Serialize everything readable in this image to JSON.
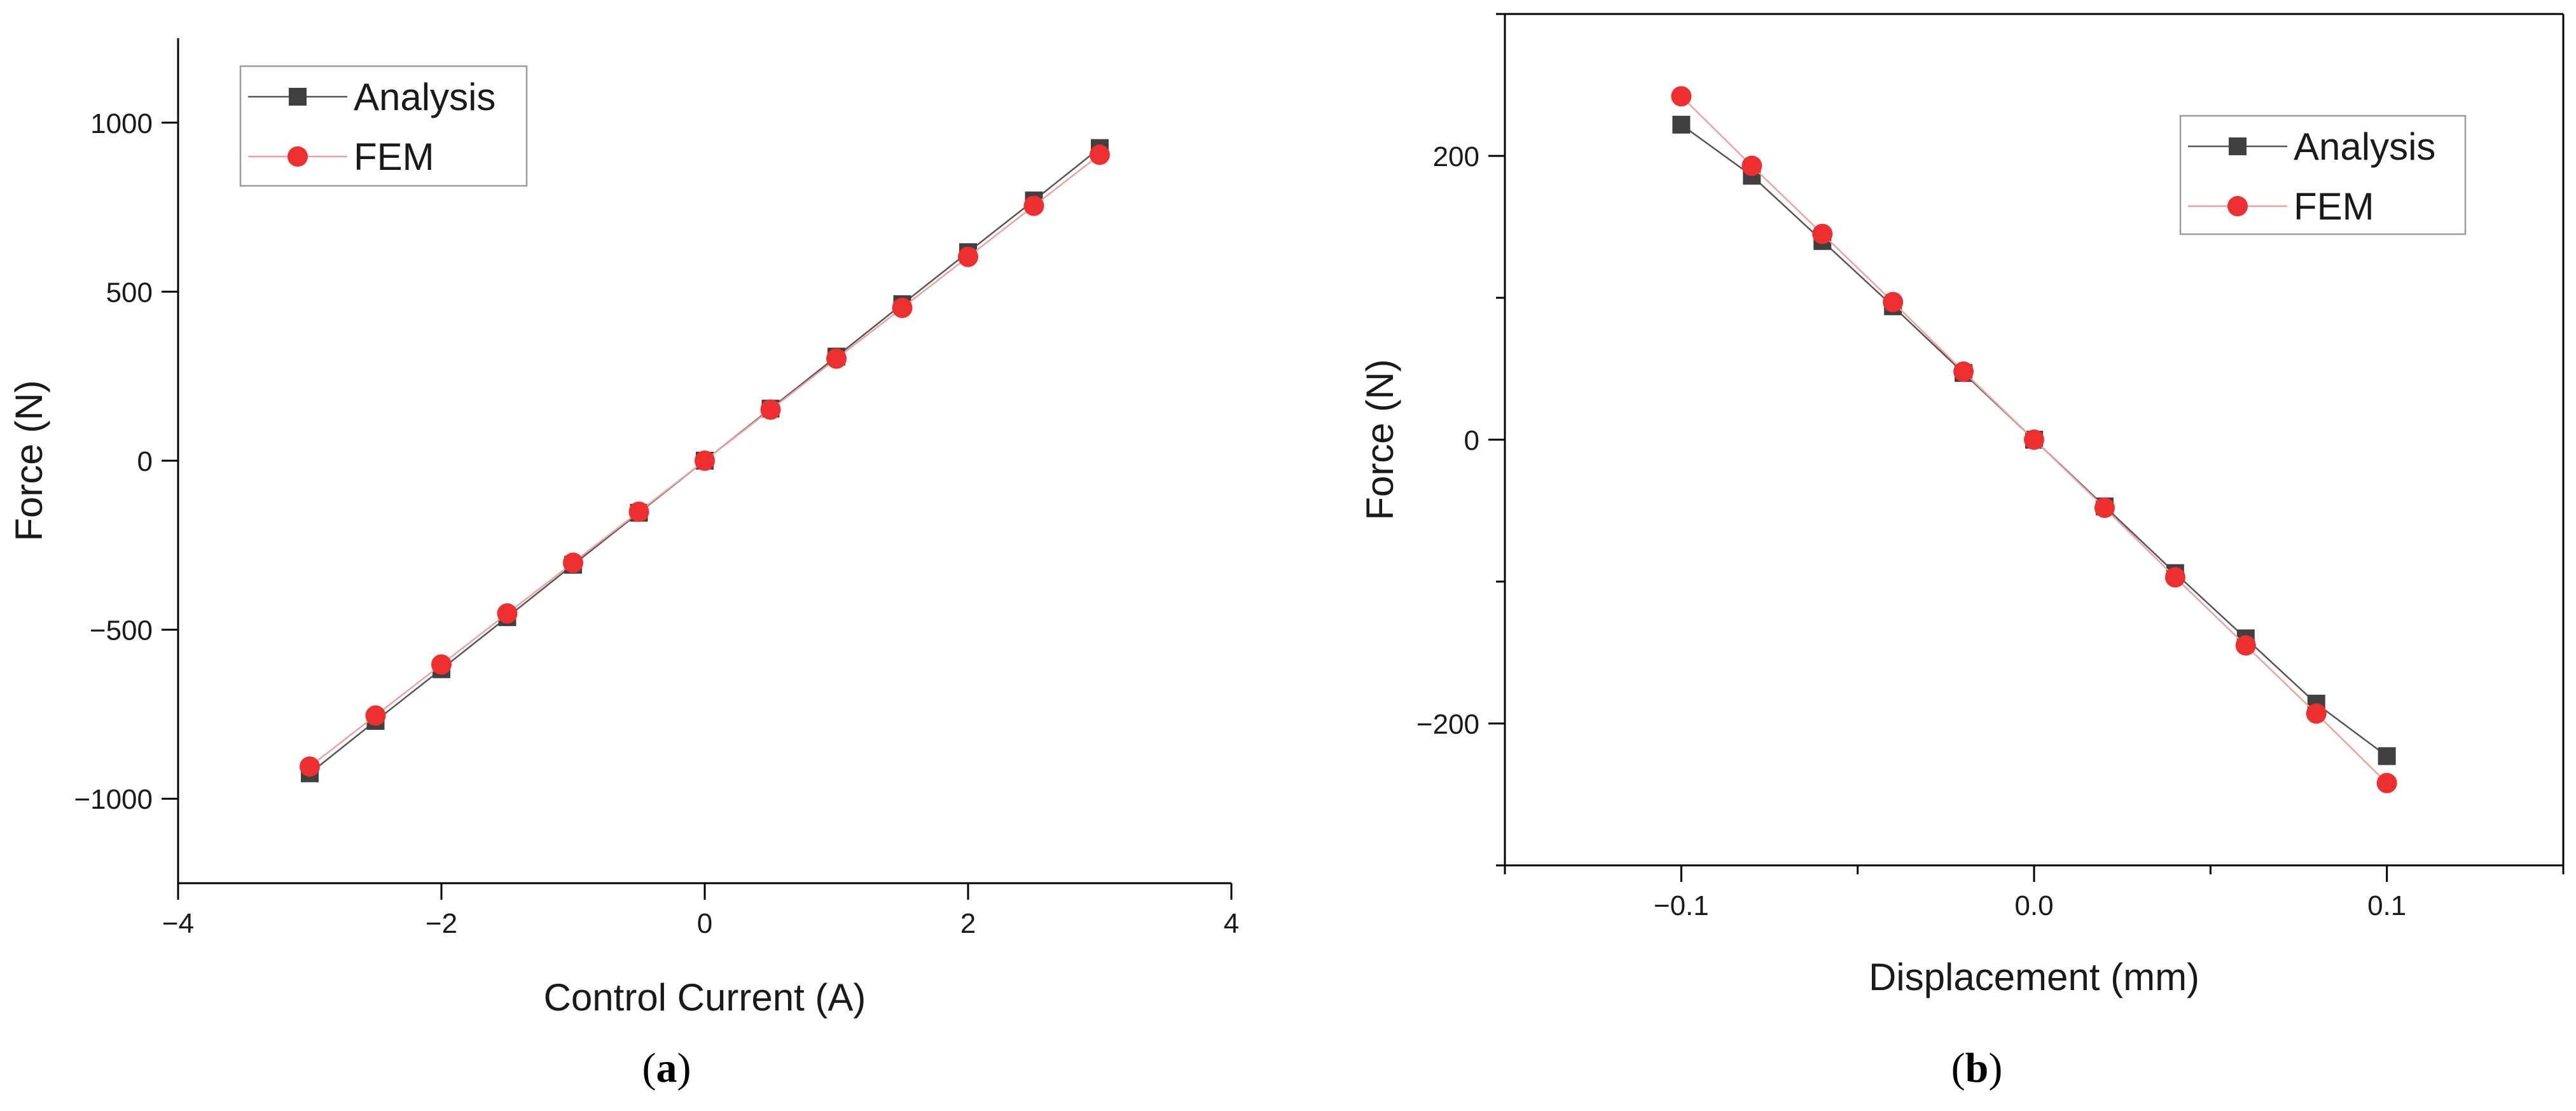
{
  "colors": {
    "analysis_line": "#555555",
    "analysis_marker": "#404040",
    "fem_line": "#f0a0a0",
    "fem_marker": "#ee2f2f",
    "axis": "#000000",
    "legend_border": "#9a9a9a"
  },
  "chart_data": [
    {
      "type": "line",
      "panel": "a",
      "caption": "(a)",
      "xlabel": "Control Current (A)",
      "ylabel": "Force (N)",
      "xlim": [
        -4,
        4
      ],
      "ylim": [
        -1250,
        1250
      ],
      "xticks": [
        -4,
        -2,
        0,
        2,
        4
      ],
      "xtick_labels": [
        "−4",
        "−2",
        "0",
        "2",
        "4"
      ],
      "yticks": [
        -1000,
        -500,
        0,
        500,
        1000
      ],
      "ytick_labels": [
        "−1000",
        "−500",
        "0",
        "500",
        "1000"
      ],
      "grid": false,
      "legend_position": "top-left",
      "x": [
        -3,
        -2.5,
        -2,
        -1.5,
        -1,
        -0.5,
        0,
        0.5,
        1,
        1.5,
        2,
        2.5,
        3
      ],
      "series": [
        {
          "name": "Analysis",
          "marker": "square",
          "values": [
            -925,
            -770,
            -617,
            -463,
            -308,
            -154,
            0,
            154,
            308,
            463,
            617,
            770,
            925
          ]
        },
        {
          "name": "FEM",
          "marker": "circle",
          "values": [
            -905,
            -754,
            -603,
            -452,
            -302,
            -151,
            0,
            151,
            302,
            452,
            603,
            754,
            905
          ]
        }
      ]
    },
    {
      "type": "line",
      "panel": "b",
      "caption": "(b)",
      "xlabel": "Displacement (mm)",
      "ylabel": "Force (N)",
      "xlim": [
        -0.15,
        0.15
      ],
      "ylim": [
        -300,
        300
      ],
      "xticks": [
        -0.1,
        0.0,
        0.1
      ],
      "xtick_labels": [
        "−0.1",
        "0.0",
        "0.1"
      ],
      "xminor": [
        -0.15,
        -0.05,
        0.05,
        0.15
      ],
      "yticks": [
        -200,
        0,
        200
      ],
      "ytick_labels": [
        "−200",
        "0",
        "200"
      ],
      "yminor": [
        -300,
        -100,
        100,
        300
      ],
      "grid": false,
      "legend_position": "top-right",
      "x": [
        -0.1,
        -0.08,
        -0.06,
        -0.04,
        -0.02,
        0,
        0.02,
        0.04,
        0.06,
        0.08,
        0.1
      ],
      "series": [
        {
          "name": "Analysis",
          "marker": "square",
          "values": [
            222,
            186,
            140,
            94,
            47,
            0,
            -47,
            -94,
            -140,
            -186,
            -223
          ]
        },
        {
          "name": "FEM",
          "marker": "circle",
          "values": [
            242,
            193,
            145,
            97,
            48,
            0,
            -48,
            -97,
            -145,
            -193,
            -242
          ]
        }
      ]
    }
  ]
}
